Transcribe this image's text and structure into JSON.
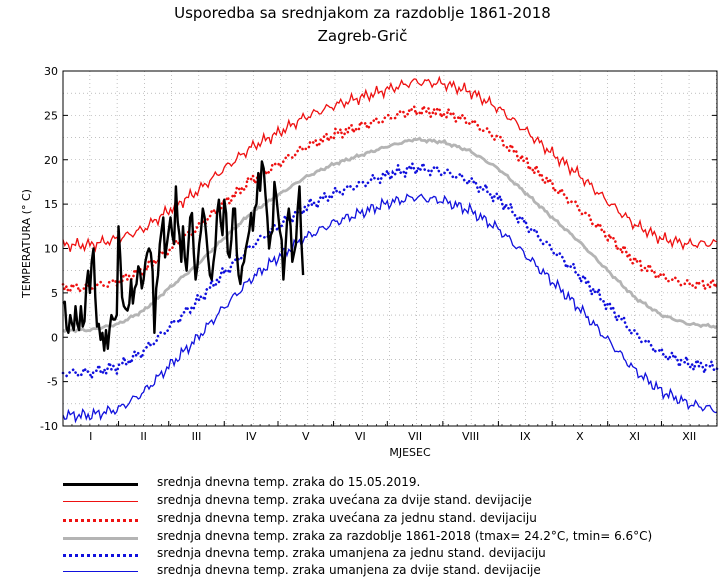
{
  "header": {
    "title": "Usporedba sa srednjakom za razdoblje 1861-2018",
    "subtitle": "Zagreb-Grič"
  },
  "chart_data": {
    "type": "line",
    "xlabel": "MJESEC",
    "ylabel": "TEMPERATURA (° C)",
    "xlim": [
      0,
      365
    ],
    "ylim": [
      -10,
      30
    ],
    "yticks": [
      -10,
      -5,
      0,
      5,
      10,
      15,
      20,
      25,
      30
    ],
    "month_labels": [
      "I",
      "II",
      "III",
      "IV",
      "V",
      "VI",
      "VII",
      "VIII",
      "IX",
      "X",
      "XI",
      "XII"
    ],
    "grid": true,
    "legend_position": "bottom",
    "series": [
      {
        "name": "srednja dnevna temp. zraka do 15.05.2019.",
        "color": "#000000",
        "style": "solid-thick",
        "x": [
          0,
          1,
          2,
          3,
          4,
          5,
          6,
          7,
          8,
          9,
          10,
          11,
          12,
          13,
          14,
          15,
          16,
          17,
          18,
          19,
          20,
          21,
          22,
          23,
          24,
          25,
          26,
          27,
          28,
          29,
          30,
          31,
          32,
          33,
          34,
          35,
          36,
          37,
          38,
          39,
          40,
          41,
          42,
          43,
          44,
          45,
          46,
          47,
          48,
          49,
          50,
          51,
          52,
          53,
          54,
          55,
          56,
          57,
          58,
          59,
          60,
          61,
          62,
          63,
          64,
          65,
          66,
          67,
          68,
          69,
          70,
          71,
          72,
          73,
          74,
          75,
          76,
          77,
          78,
          79,
          80,
          81,
          82,
          83,
          84,
          85,
          86,
          87,
          88,
          89,
          90,
          91,
          92,
          93,
          94,
          95,
          96,
          97,
          98,
          99,
          100,
          101,
          102,
          103,
          104,
          105,
          106,
          107,
          108,
          109,
          110,
          111,
          112,
          113,
          114,
          115,
          116,
          117,
          118,
          119,
          120,
          121,
          122,
          123,
          124,
          125,
          126,
          127,
          128,
          129,
          130,
          131,
          132,
          133,
          134
        ],
        "values": [
          3.8,
          4.0,
          1.0,
          0.5,
          2.5,
          1.5,
          0.8,
          3.5,
          1.5,
          0.8,
          3.5,
          1.2,
          1.8,
          5.8,
          7.5,
          5.0,
          8.5,
          10.0,
          4.5,
          1.2,
          1.5,
          -0.3,
          0.5,
          -1.5,
          0.8,
          -1.3,
          1.0,
          2.5,
          2.0,
          2.0,
          2.5,
          12.5,
          9.0,
          4.5,
          3.5,
          3.2,
          3.0,
          3.8,
          6.5,
          3.8,
          5.5,
          6.0,
          8.0,
          7.5,
          5.5,
          6.5,
          8.5,
          9.5,
          10.0,
          9.5,
          7.5,
          0.5,
          5.5,
          7.0,
          10.5,
          12.0,
          13.5,
          9.0,
          10.5,
          12.0,
          13.5,
          11.5,
          10.5,
          17.0,
          13.0,
          11.5,
          8.5,
          12.5,
          9.0,
          7.5,
          10.5,
          13.5,
          14.0,
          9.5,
          6.5,
          8.0,
          10.5,
          12.0,
          14.5,
          13.5,
          11.5,
          9.0,
          7.0,
          6.5,
          8.5,
          10.0,
          14.0,
          15.5,
          13.0,
          11.5,
          15.5,
          14.0,
          9.5,
          9.0,
          11.0,
          14.5,
          14.5,
          9.5,
          7.0,
          6.0,
          8.0,
          8.5,
          10.0,
          11.0,
          12.0,
          14.0,
          12.0,
          14.5,
          15.0,
          18.5,
          16.5,
          19.8,
          19.0,
          16.0,
          13.5,
          10.0,
          11.5,
          12.0,
          17.5,
          16.0,
          14.0,
          12.0,
          11.0,
          6.5,
          9.5,
          13.0,
          14.5,
          12.5,
          8.5,
          9.5,
          10.5,
          14.5,
          17.0,
          11.0,
          7.0
        ]
      },
      {
        "name": "srednja dnevna temp. zraka uvećana za dvije stand. devijacije",
        "color": "#ee1111",
        "style": "solid",
        "base": "mean+2sd"
      },
      {
        "name": "srednja dnevna temp. zraka uvećana za jednu stand. devijaciju",
        "color": "#ee1111",
        "style": "dotted",
        "base": "mean+1sd"
      },
      {
        "name": "srednja dnevna temp. zraka za razdoblje 1861-2018 (tmax= 24.2°C, tmin= 6.6°C)",
        "color": "#b4b4b4",
        "style": "solid-thick",
        "tmax": 24.2,
        "tmin": 6.6,
        "x": [
          0,
          15,
          31,
          45,
          59,
          74,
          90,
          105,
          120,
          135,
          151,
          166,
          181,
          196,
          212,
          227,
          243,
          258,
          273,
          288,
          304,
          319,
          334,
          349,
          365
        ],
        "values": [
          0.8,
          0.8,
          1.5,
          3.0,
          5.5,
          8.0,
          11.2,
          14.0,
          16.0,
          18.0,
          19.5,
          20.5,
          21.5,
          22.3,
          22.0,
          21.0,
          19.0,
          16.3,
          13.5,
          10.8,
          7.5,
          4.5,
          2.5,
          1.5,
          1.2
        ]
      },
      {
        "name": "srednja dnevna temp. zraka umanjena za jednu stand. devijaciju",
        "color": "#1111dd",
        "style": "dotted",
        "base": "mean-1sd"
      },
      {
        "name": "srednja dnevna temp. zraka umanjena za dvije stand. devijacije",
        "color": "#1111dd",
        "style": "solid",
        "base": "mean-2sd"
      }
    ],
    "sd_profile": {
      "x": [
        0,
        31,
        59,
        90,
        120,
        151,
        181,
        212,
        243,
        273,
        304,
        334,
        365
      ],
      "values": [
        4.8,
        4.8,
        4.4,
        3.9,
        3.5,
        3.3,
        3.2,
        3.3,
        3.4,
        3.6,
        3.9,
        4.3,
        4.7
      ]
    }
  }
}
